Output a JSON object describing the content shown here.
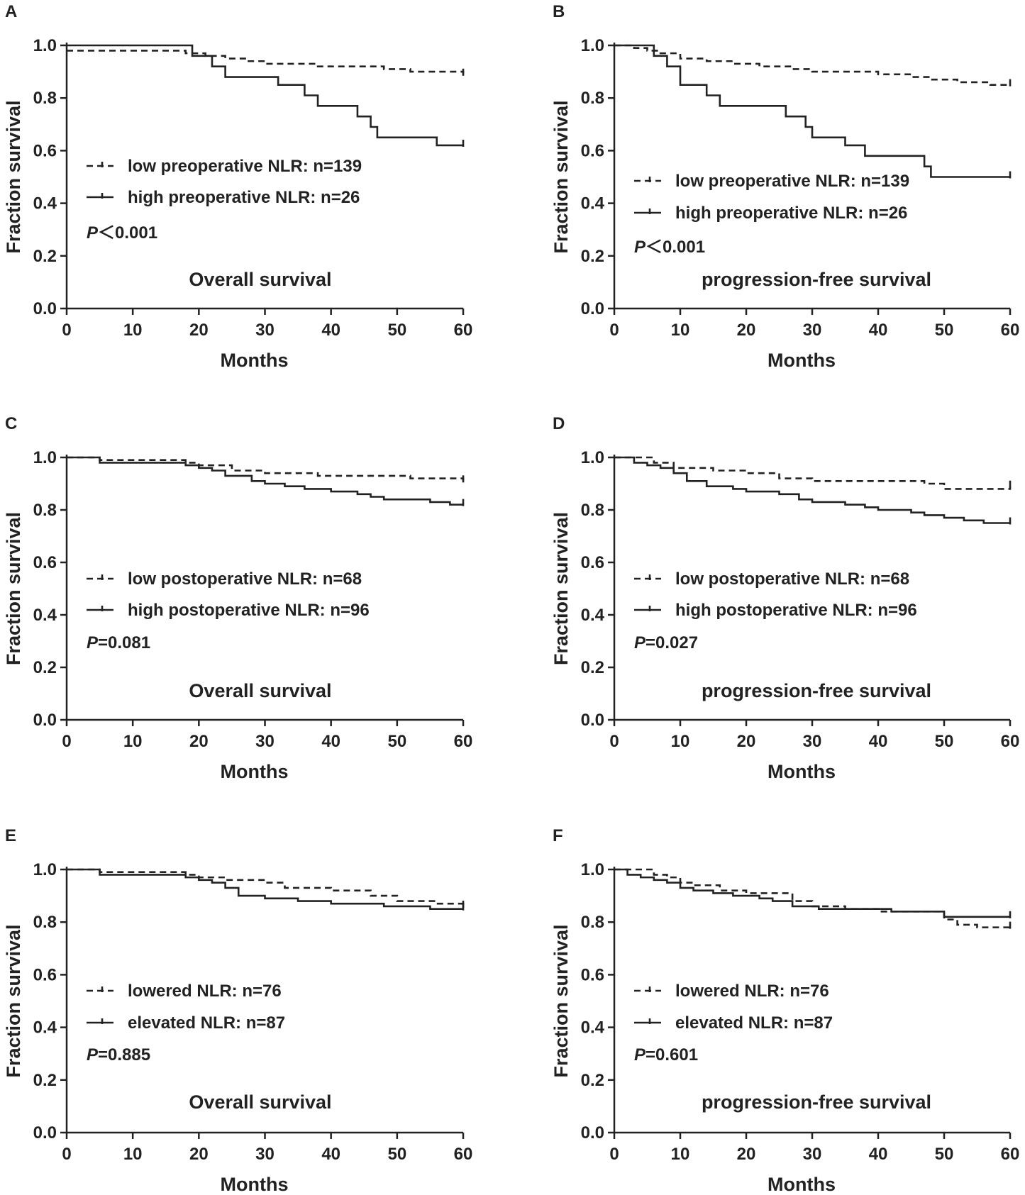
{
  "chart_data": [
    {
      "panel": "A",
      "type": "line",
      "subtitle": "Overall survival",
      "xlabel": "Months",
      "ylabel": "Fraction survival",
      "xlim": [
        0,
        60
      ],
      "ylim": [
        0,
        1
      ],
      "x_ticks": [
        "0",
        "10",
        "20",
        "30",
        "40",
        "50",
        "60"
      ],
      "y_ticks": [
        "0.0",
        "0.2",
        "0.4",
        "0.6",
        "0.8",
        "1.0"
      ],
      "p_italic": "P",
      "p_rest": "＜0.001",
      "series": [
        {
          "name": "low preoperative NLR: n=139",
          "style": "dashed",
          "x": [
            0,
            5,
            18,
            21,
            24,
            27,
            30,
            32,
            35,
            38,
            42,
            45,
            48,
            52,
            55,
            57,
            60
          ],
          "y": [
            0.98,
            0.98,
            0.97,
            0.96,
            0.95,
            0.94,
            0.93,
            0.93,
            0.93,
            0.92,
            0.92,
            0.92,
            0.91,
            0.9,
            0.9,
            0.9,
            0.89
          ]
        },
        {
          "name": "high preoperative NLR: n=26",
          "style": "solid",
          "x": [
            0,
            18,
            19,
            22,
            24,
            32,
            36,
            38,
            44,
            46,
            47,
            56,
            60
          ],
          "y": [
            1.0,
            1.0,
            0.96,
            0.92,
            0.88,
            0.85,
            0.81,
            0.77,
            0.73,
            0.69,
            0.65,
            0.62,
            0.62
          ]
        }
      ]
    },
    {
      "panel": "B",
      "type": "line",
      "subtitle": "progression-free survival",
      "xlabel": "Months",
      "ylabel": "Fraction survival",
      "xlim": [
        0,
        60
      ],
      "ylim": [
        0,
        1
      ],
      "x_ticks": [
        "0",
        "10",
        "20",
        "30",
        "40",
        "50",
        "60"
      ],
      "y_ticks": [
        "0.0",
        "0.2",
        "0.4",
        "0.6",
        "0.8",
        "1.0"
      ],
      "p_italic": "P",
      "p_rest": "＜0.001",
      "series": [
        {
          "name": "low preoperative NLR: n=139",
          "style": "dashed",
          "x": [
            0,
            3,
            5,
            7,
            10,
            14,
            18,
            22,
            27,
            30,
            35,
            40,
            45,
            48,
            52,
            55,
            57,
            60
          ],
          "y": [
            1.0,
            0.99,
            0.98,
            0.97,
            0.95,
            0.94,
            0.93,
            0.92,
            0.91,
            0.9,
            0.9,
            0.89,
            0.88,
            0.87,
            0.86,
            0.86,
            0.85,
            0.85
          ]
        },
        {
          "name": "high preoperative NLR: n=26",
          "style": "solid",
          "x": [
            0,
            6,
            8,
            10,
            14,
            16,
            26,
            29,
            30,
            35,
            38,
            47,
            48,
            60
          ],
          "y": [
            1.0,
            0.96,
            0.92,
            0.85,
            0.81,
            0.77,
            0.73,
            0.69,
            0.65,
            0.62,
            0.58,
            0.54,
            0.5,
            0.5
          ]
        }
      ]
    },
    {
      "panel": "C",
      "type": "line",
      "subtitle": "Overall survival",
      "xlabel": "Months",
      "ylabel": "Fraction survival",
      "xlim": [
        0,
        60
      ],
      "ylim": [
        0,
        1
      ],
      "x_ticks": [
        "0",
        "10",
        "20",
        "30",
        "40",
        "50",
        "60"
      ],
      "y_ticks": [
        "0.0",
        "0.2",
        "0.4",
        "0.6",
        "0.8",
        "1.0"
      ],
      "p_italic": "P",
      "p_rest": "=0.081",
      "series": [
        {
          "name": "low postoperative NLR: n=68",
          "style": "dashed",
          "x": [
            0,
            5,
            18,
            20,
            25,
            30,
            38,
            45,
            52,
            57,
            60
          ],
          "y": [
            1.0,
            0.99,
            0.98,
            0.97,
            0.95,
            0.94,
            0.93,
            0.93,
            0.92,
            0.92,
            0.91
          ]
        },
        {
          "name": "high postoperative NLR: n=96",
          "style": "solid",
          "x": [
            0,
            5,
            18,
            20,
            22,
            24,
            28,
            30,
            33,
            36,
            40,
            44,
            46,
            48,
            55,
            58,
            60
          ],
          "y": [
            1.0,
            0.98,
            0.97,
            0.96,
            0.95,
            0.93,
            0.91,
            0.9,
            0.89,
            0.88,
            0.87,
            0.86,
            0.85,
            0.84,
            0.83,
            0.82,
            0.82
          ]
        }
      ]
    },
    {
      "panel": "D",
      "type": "line",
      "subtitle": "progression-free survival",
      "xlabel": "Months",
      "ylabel": "Fraction survival",
      "xlim": [
        0,
        60
      ],
      "ylim": [
        0,
        1
      ],
      "x_ticks": [
        "0",
        "10",
        "20",
        "30",
        "40",
        "50",
        "60"
      ],
      "y_ticks": [
        "0.0",
        "0.2",
        "0.4",
        "0.6",
        "0.8",
        "1.0"
      ],
      "p_italic": "P",
      "p_rest": "=0.027",
      "series": [
        {
          "name": "low postoperative NLR: n=68",
          "style": "dashed",
          "x": [
            0,
            6,
            9,
            15,
            20,
            25,
            30,
            40,
            47,
            50,
            57,
            60
          ],
          "y": [
            1.0,
            0.98,
            0.96,
            0.95,
            0.94,
            0.92,
            0.91,
            0.91,
            0.9,
            0.88,
            0.88,
            0.89
          ]
        },
        {
          "name": "high postoperative NLR: n=96",
          "style": "solid",
          "x": [
            0,
            3,
            5,
            7,
            9,
            11,
            14,
            18,
            20,
            25,
            28,
            30,
            35,
            38,
            40,
            45,
            47,
            50,
            53,
            56,
            60
          ],
          "y": [
            1.0,
            0.98,
            0.97,
            0.96,
            0.94,
            0.91,
            0.89,
            0.88,
            0.87,
            0.86,
            0.84,
            0.83,
            0.82,
            0.81,
            0.8,
            0.79,
            0.78,
            0.77,
            0.76,
            0.75,
            0.75
          ]
        }
      ]
    },
    {
      "panel": "E",
      "type": "line",
      "subtitle": "Overall survival",
      "xlabel": "Months",
      "ylabel": "Fraction survival",
      "xlim": [
        0,
        60
      ],
      "ylim": [
        0,
        1
      ],
      "x_ticks": [
        "0",
        "10",
        "20",
        "30",
        "40",
        "50",
        "60"
      ],
      "y_ticks": [
        "0.0",
        "0.2",
        "0.4",
        "0.6",
        "0.8",
        "1.0"
      ],
      "p_italic": "P",
      "p_rest": "=0.885",
      "series": [
        {
          "name": "lowered NLR: n=76",
          "style": "dashed",
          "x": [
            0,
            5,
            18,
            20,
            24,
            30,
            33,
            40,
            46,
            50,
            56,
            60
          ],
          "y": [
            1.0,
            0.99,
            0.98,
            0.97,
            0.96,
            0.95,
            0.93,
            0.92,
            0.9,
            0.88,
            0.87,
            0.86
          ]
        },
        {
          "name": "elevated NLR: n=87",
          "style": "solid",
          "x": [
            0,
            5,
            18,
            20,
            22,
            24,
            26,
            30,
            35,
            40,
            45,
            48,
            55,
            60
          ],
          "y": [
            1.0,
            0.98,
            0.97,
            0.96,
            0.95,
            0.93,
            0.9,
            0.89,
            0.88,
            0.87,
            0.87,
            0.86,
            0.85,
            0.85
          ]
        }
      ]
    },
    {
      "panel": "F",
      "type": "line",
      "subtitle": "progression-free survival",
      "xlabel": "Months",
      "ylabel": "Fraction survival",
      "xlim": [
        0,
        60
      ],
      "ylim": [
        0,
        1
      ],
      "x_ticks": [
        "0",
        "10",
        "20",
        "30",
        "40",
        "50",
        "60"
      ],
      "y_ticks": [
        "0.0",
        "0.2",
        "0.4",
        "0.6",
        "0.8",
        "1.0"
      ],
      "p_italic": "P",
      "p_rest": "=0.601",
      "series": [
        {
          "name": "lowered NLR: n=76",
          "style": "dashed",
          "x": [
            0,
            6,
            8,
            10,
            12,
            16,
            20,
            27,
            30,
            35,
            40,
            47,
            50,
            52,
            55,
            60
          ],
          "y": [
            1.0,
            0.98,
            0.97,
            0.95,
            0.94,
            0.92,
            0.91,
            0.88,
            0.86,
            0.85,
            0.84,
            0.84,
            0.81,
            0.79,
            0.78,
            0.78
          ]
        },
        {
          "name": "elevated NLR: n=87",
          "style": "solid",
          "x": [
            0,
            2,
            4,
            6,
            8,
            10,
            12,
            15,
            18,
            22,
            24,
            27,
            31,
            35,
            42,
            47,
            50,
            55,
            60
          ],
          "y": [
            1.0,
            0.98,
            0.97,
            0.96,
            0.95,
            0.93,
            0.92,
            0.91,
            0.9,
            0.89,
            0.88,
            0.86,
            0.85,
            0.85,
            0.84,
            0.84,
            0.82,
            0.82,
            0.82
          ]
        }
      ]
    }
  ]
}
